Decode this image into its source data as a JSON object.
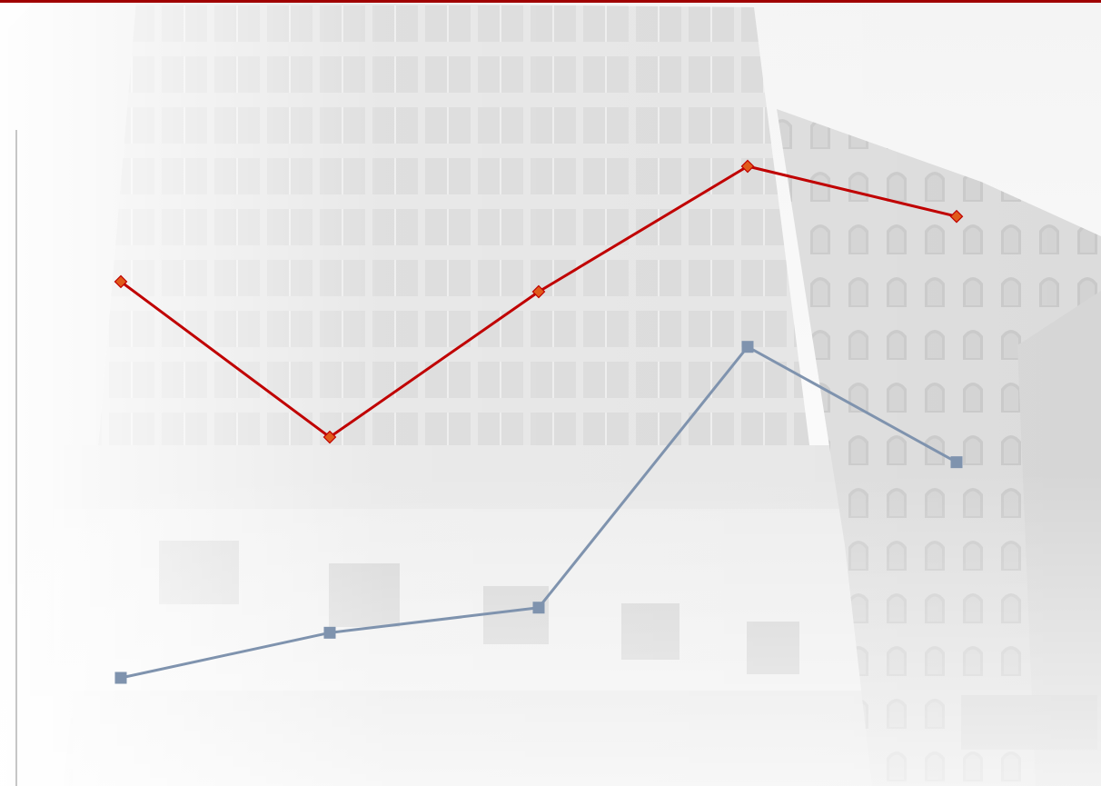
{
  "theme": {
    "accent": "#A00000",
    "series_colors": [
      "#C00000",
      "#7F93AE"
    ],
    "marker_colors": [
      "#E05A1A",
      "#7F93AE"
    ],
    "background_photo": "grayscale-building-facade"
  },
  "chart_data": {
    "type": "line",
    "title": "",
    "xlabel": "",
    "ylabel": "",
    "categories": [
      "",
      "",
      "",
      "",
      ""
    ],
    "grid": false,
    "legend": "none",
    "axis_labels_visible": false,
    "series": [
      {
        "marker": "diamond",
        "values": [
          79,
          48,
          77,
          102,
          92
        ]
      },
      {
        "marker": "square",
        "values": [
          0,
          9,
          14,
          66,
          43
        ]
      }
    ]
  }
}
